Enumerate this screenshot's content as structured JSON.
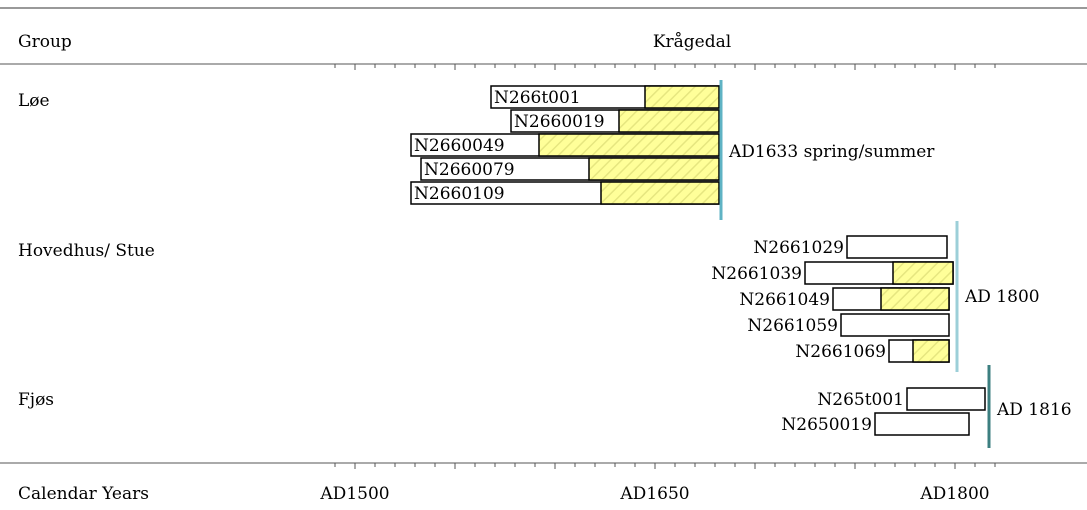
{
  "chart_data": {
    "type": "bar",
    "title": "Krågedal",
    "column_header": "Group",
    "xlabel": "Calendar Years",
    "x_ticks": [
      "AD1500",
      "AD1650",
      "AD1800"
    ],
    "xlim": [
      1485,
      1822
    ],
    "colors": {
      "sapwood_fill": "#ffff99",
      "sapwood_hatch": "#e6e680",
      "heartwood_fill": "#ffffff",
      "felling_line_1": "#5fb3c4",
      "felling_line_2": "#9ccfd8",
      "felling_line_3": "#3c7f80"
    },
    "groups": [
      {
        "name": "Løe",
        "felling_label": "AD1633 spring/summer",
        "felling_year": 1633,
        "felling_color_key": "felling_line_1",
        "label_side": "inside",
        "samples": [
          {
            "id": "N266t001",
            "start": 1568,
            "sapwood_start": 1645,
            "end": 1682
          },
          {
            "id": "N2660019",
            "start": 1578,
            "sapwood_start": 1632,
            "end": 1682
          },
          {
            "id": "N2660049",
            "start": 1528,
            "sapwood_start": 1592,
            "end": 1682
          },
          {
            "id": "N2660079",
            "start": 1533,
            "sapwood_start": 1617,
            "end": 1682
          },
          {
            "id": "N2660109",
            "start": 1528,
            "sapwood_start": 1623,
            "end": 1682
          }
        ]
      },
      {
        "name": "Hovedhus/ Stue",
        "felling_label": "AD 1800",
        "felling_year": 1800,
        "felling_color_key": "felling_line_2",
        "label_side": "outside",
        "samples": [
          {
            "id": "N2661029",
            "start": 1746,
            "sapwood_start": null,
            "end": 1796
          },
          {
            "id": "N2661039",
            "start": 1725,
            "sapwood_start": 1769,
            "end": 1799
          },
          {
            "id": "N2661049",
            "start": 1739,
            "sapwood_start": 1763,
            "end": 1797
          },
          {
            "id": "N2661059",
            "start": 1743,
            "sapwood_start": null,
            "end": 1797
          },
          {
            "id": "N2661069",
            "start": 1767,
            "sapwood_start": 1779,
            "end": 1797
          }
        ]
      },
      {
        "name": "Fjøs",
        "felling_label": "AD 1816",
        "felling_year": 1816,
        "felling_color_key": "felling_line_3",
        "label_side": "outside",
        "samples": [
          {
            "id": "N265t001",
            "start": 1776,
            "sapwood_start": null,
            "end": 1815
          },
          {
            "id": "N2650019",
            "start": 1760,
            "sapwood_start": null,
            "end": 1807
          }
        ]
      }
    ]
  }
}
